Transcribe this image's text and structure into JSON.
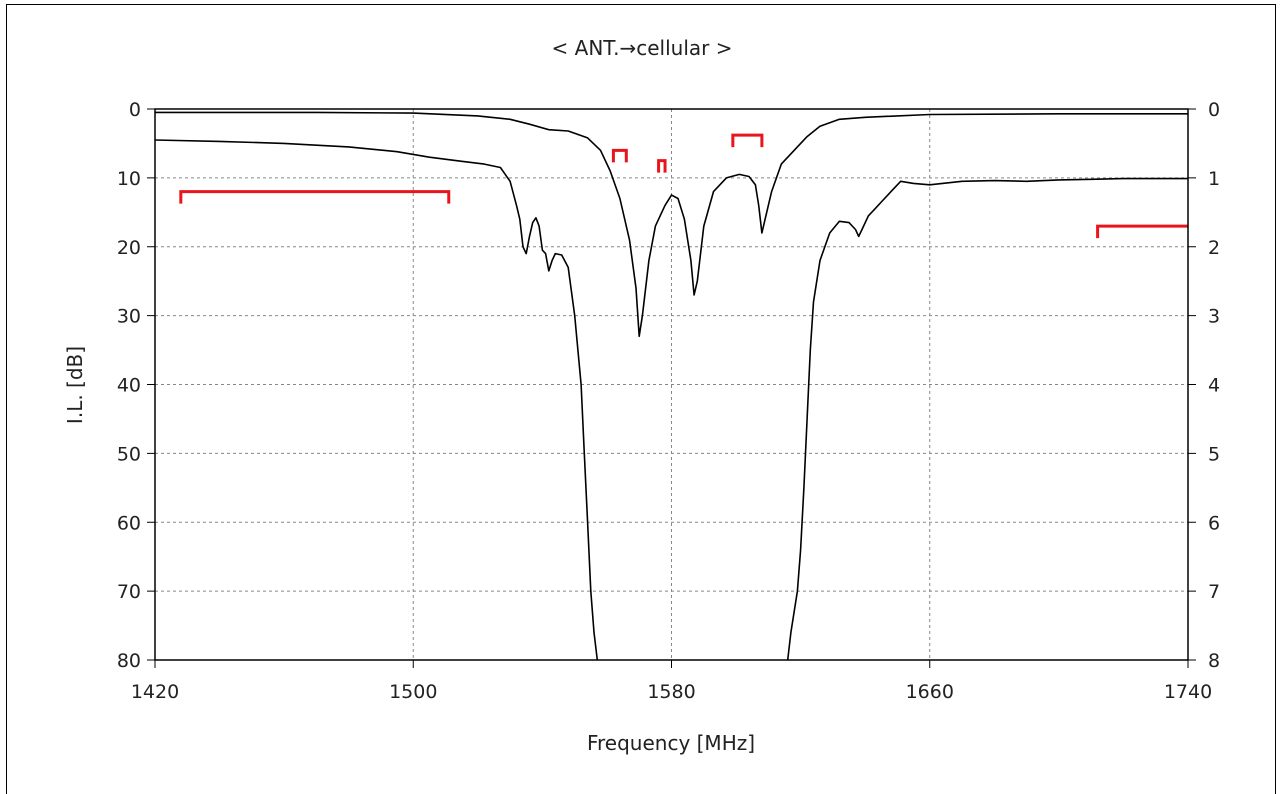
{
  "chart_data": {
    "type": "line",
    "title": "< ANT.→cellular >",
    "xlabel": "Frequency [MHz]",
    "ylabel": "I.L. [dB]",
    "xlim": [
      1420,
      1740
    ],
    "ylim": [
      0,
      80
    ],
    "ylim_right": [
      0,
      8
    ],
    "x_ticks": [
      "1420",
      "1500",
      "1580",
      "1660",
      "1740"
    ],
    "y_ticks": [
      "0",
      "10",
      "20",
      "30",
      "40",
      "50",
      "60",
      "70",
      "80"
    ],
    "y_ticks_right": [
      "0",
      "1",
      "2",
      "3",
      "4",
      "5",
      "6",
      "7",
      "8"
    ],
    "grid": true,
    "series": [
      {
        "axis": "left",
        "color": "#000000",
        "points": [
          [
            1420,
            4.5
          ],
          [
            1440,
            4.7
          ],
          [
            1460,
            5.0
          ],
          [
            1480,
            5.5
          ],
          [
            1495,
            6.2
          ],
          [
            1505,
            7.0
          ],
          [
            1515,
            7.6
          ],
          [
            1522,
            8.0
          ],
          [
            1527,
            8.5
          ],
          [
            1530,
            10.5
          ],
          [
            1532,
            14.0
          ],
          [
            1533,
            16.0
          ],
          [
            1534,
            20.0
          ],
          [
            1535,
            21.0
          ],
          [
            1536,
            18.5
          ],
          [
            1537,
            16.5
          ],
          [
            1538,
            15.8
          ],
          [
            1539,
            17.0
          ],
          [
            1540,
            20.5
          ],
          [
            1541,
            21.0
          ],
          [
            1542,
            23.5
          ],
          [
            1543,
            22.0
          ],
          [
            1544,
            21.0
          ],
          [
            1546,
            21.2
          ],
          [
            1548,
            23.0
          ],
          [
            1550,
            30.0
          ],
          [
            1552,
            40.0
          ],
          [
            1553,
            50.0
          ],
          [
            1554,
            60.0
          ],
          [
            1555,
            70.0
          ],
          [
            1556,
            76.0
          ],
          [
            1557,
            80.0
          ]
        ]
      },
      {
        "axis": "left",
        "color": "#000000",
        "points": [
          [
            1616,
            80.0
          ],
          [
            1617,
            76.0
          ],
          [
            1619,
            70.0
          ],
          [
            1620,
            64.0
          ],
          [
            1621,
            55.0
          ],
          [
            1622,
            45.0
          ],
          [
            1623,
            35.0
          ],
          [
            1624,
            28.0
          ],
          [
            1626,
            22.0
          ],
          [
            1629,
            18.0
          ],
          [
            1632,
            16.3
          ],
          [
            1635,
            16.5
          ],
          [
            1637,
            17.5
          ],
          [
            1638,
            18.5
          ],
          [
            1639,
            17.5
          ],
          [
            1641,
            15.5
          ],
          [
            1643,
            14.5
          ],
          [
            1645,
            13.5
          ],
          [
            1648,
            12.0
          ],
          [
            1651,
            10.5
          ],
          [
            1655,
            10.8
          ],
          [
            1660,
            11.0
          ],
          [
            1670,
            10.5
          ],
          [
            1680,
            10.4
          ],
          [
            1690,
            10.5
          ],
          [
            1700,
            10.3
          ],
          [
            1710,
            10.2
          ],
          [
            1720,
            10.1
          ],
          [
            1740,
            10.1
          ]
        ]
      },
      {
        "axis": "right",
        "color": "#000000",
        "points": [
          [
            1420,
            0.05
          ],
          [
            1470,
            0.05
          ],
          [
            1500,
            0.06
          ],
          [
            1520,
            0.1
          ],
          [
            1530,
            0.15
          ],
          [
            1536,
            0.22
          ],
          [
            1542,
            0.3
          ],
          [
            1548,
            0.32
          ],
          [
            1554,
            0.42
          ],
          [
            1558,
            0.6
          ],
          [
            1561,
            0.9
          ],
          [
            1564,
            1.3
          ],
          [
            1567,
            1.9
          ],
          [
            1569,
            2.6
          ],
          [
            1570,
            3.3
          ],
          [
            1571,
            3.0
          ],
          [
            1573,
            2.2
          ],
          [
            1575,
            1.7
          ],
          [
            1578,
            1.4
          ],
          [
            1580,
            1.25
          ],
          [
            1582,
            1.3
          ],
          [
            1584,
            1.6
          ],
          [
            1586,
            2.2
          ],
          [
            1587,
            2.7
          ],
          [
            1588,
            2.5
          ],
          [
            1590,
            1.7
          ],
          [
            1593,
            1.2
          ],
          [
            1597,
            1.0
          ],
          [
            1601,
            0.95
          ],
          [
            1604,
            0.98
          ],
          [
            1606,
            1.1
          ],
          [
            1607,
            1.4
          ],
          [
            1608,
            1.8
          ],
          [
            1609,
            1.6
          ],
          [
            1611,
            1.2
          ],
          [
            1614,
            0.8
          ],
          [
            1618,
            0.6
          ],
          [
            1622,
            0.4
          ],
          [
            1626,
            0.25
          ],
          [
            1632,
            0.15
          ],
          [
            1640,
            0.12
          ],
          [
            1660,
            0.08
          ],
          [
            1700,
            0.07
          ],
          [
            1740,
            0.07
          ]
        ]
      }
    ],
    "spec_brackets": [
      {
        "axis": "left",
        "x1": 1428,
        "x2": 1511,
        "y": 12.0
      },
      {
        "axis": "left",
        "x1": 1562,
        "x2": 1566,
        "y": 6.0
      },
      {
        "axis": "left",
        "x1": 1576,
        "x2": 1578,
        "y": 7.5
      },
      {
        "axis": "left",
        "x1": 1599,
        "x2": 1608,
        "y": 3.8
      },
      {
        "axis": "left",
        "x1": 1712,
        "x2": 1740,
        "y": 17.0
      }
    ],
    "spec_color": "#e8161c"
  }
}
